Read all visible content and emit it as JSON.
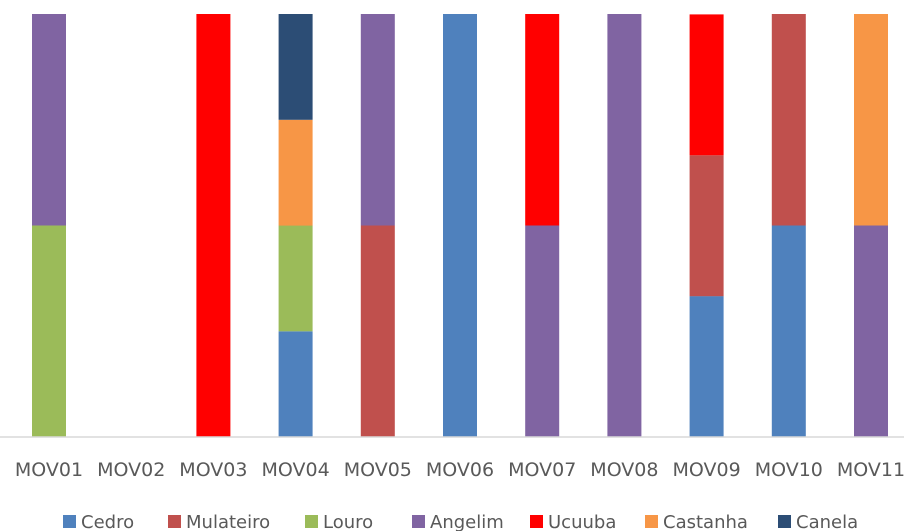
{
  "chart_data": {
    "type": "bar",
    "stacked": true,
    "percent_stacked": true,
    "title": "",
    "xlabel": "",
    "ylabel": "",
    "ylim": [
      0,
      1
    ],
    "grid": false,
    "legend_position": "bottom",
    "categories": [
      "MOV01",
      "MOV02",
      "MOV03",
      "MOV04",
      "MOV05",
      "MOV06",
      "MOV07",
      "MOV08",
      "MOV09",
      "MOV10",
      "MOV11"
    ],
    "series": [
      {
        "name": "Cedro",
        "color": "#4F81BD",
        "values": [
          0,
          0,
          0,
          0.25,
          0,
          1.0,
          0,
          0,
          0.333,
          0.5,
          0
        ]
      },
      {
        "name": "Mulateiro",
        "color": "#C0504D",
        "values": [
          0,
          0,
          0,
          0,
          0.5,
          0,
          0,
          0,
          0.333,
          0.5,
          0
        ]
      },
      {
        "name": "Louro",
        "color": "#9BBB59",
        "values": [
          0.5,
          0,
          0,
          0.25,
          0,
          0,
          0,
          0,
          0,
          0,
          0
        ]
      },
      {
        "name": "Angelim",
        "color": "#8064A2",
        "values": [
          0.5,
          0,
          0,
          0,
          0.5,
          0,
          0.5,
          1.0,
          0,
          0,
          0.5
        ]
      },
      {
        "name": "Ucuuba",
        "color": "#FF0000",
        "values": [
          0,
          0,
          1.0,
          0,
          0,
          0,
          0.5,
          0,
          0.333,
          0,
          0
        ]
      },
      {
        "name": "Castanha",
        "color": "#F79646",
        "values": [
          0,
          0,
          0,
          0.25,
          0,
          0,
          0,
          0,
          0,
          0,
          0.5
        ]
      },
      {
        "name": "Canela",
        "color": "#2C4D75",
        "values": [
          0,
          0,
          0,
          0.25,
          0,
          0,
          0,
          0,
          0,
          0,
          0
        ]
      }
    ]
  }
}
